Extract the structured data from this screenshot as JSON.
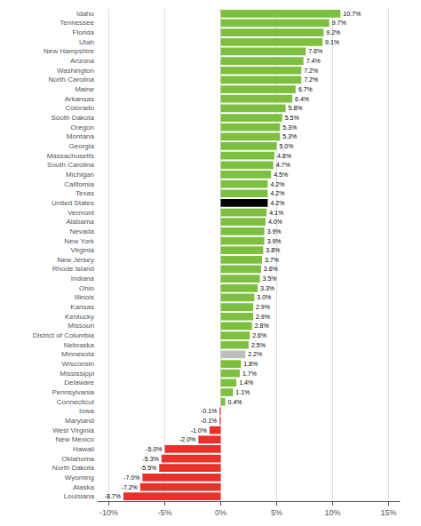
{
  "chart_data": {
    "type": "bar",
    "orientation": "horizontal",
    "categories": [
      "Idaho",
      "Tennessee",
      "Florida",
      "Utah",
      "New Hampshire",
      "Arizona",
      "Washington",
      "North Carolina",
      "Maine",
      "Arkansas",
      "Colorado",
      "South Dakota",
      "Oregon",
      "Montana",
      "Georgia",
      "Massachusetts",
      "South Carolina",
      "Michigan",
      "California",
      "Texas",
      "United States",
      "Vermont",
      "Alabama",
      "Nevada",
      "New York",
      "Virginia",
      "New Jersey",
      "Rhode Island",
      "Indiana",
      "Ohio",
      "Illinois",
      "Kansas",
      "Kentucky",
      "Missouri",
      "District of Columbia",
      "Nebraska",
      "Minnesota",
      "Wisconsin",
      "Mississippi",
      "Delaware",
      "Pennsylvania",
      "Connecticut",
      "Iowa",
      "Maryland",
      "West Virginia",
      "New Mexico",
      "Hawaii",
      "Oklahoma",
      "North Dakota",
      "Wyoming",
      "Alaska",
      "Louisiana"
    ],
    "values": [
      10.7,
      9.7,
      9.2,
      9.1,
      7.6,
      7.4,
      7.2,
      7.2,
      6.7,
      6.4,
      5.8,
      5.5,
      5.3,
      5.3,
      5.0,
      4.8,
      4.7,
      4.5,
      4.2,
      4.2,
      4.2,
      4.1,
      4.0,
      3.9,
      3.9,
      3.8,
      3.7,
      3.6,
      3.5,
      3.3,
      3.0,
      2.9,
      2.9,
      2.8,
      2.6,
      2.5,
      2.2,
      1.8,
      1.7,
      1.4,
      1.1,
      0.4,
      -0.1,
      -0.1,
      -1.0,
      -2.0,
      -5.0,
      -5.3,
      -5.5,
      -7.0,
      -7.2,
      -8.7
    ],
    "value_labels": [
      "10.7%",
      "9.7%",
      "9.2%",
      "9.1%",
      "7.6%",
      "7.4%",
      "7.2%",
      "7.2%",
      "6.7%",
      "6.4%",
      "5.8%",
      "5.5%",
      "5.3%",
      "5.3%",
      "5.0%",
      "4.8%",
      "4.7%",
      "4.5%",
      "4.2%",
      "4.2%",
      "4.2%",
      "4.1%",
      "4.0%",
      "3.9%",
      "3.9%",
      "3.8%",
      "3.7%",
      "3.6%",
      "3.5%",
      "3.3%",
      "3.0%",
      "2.9%",
      "2.9%",
      "2.8%",
      "2.6%",
      "2.5%",
      "2.2%",
      "1.8%",
      "1.7%",
      "1.4%",
      "1.1%",
      "0.4%",
      "-0.1%",
      "-0.1%",
      "-1.0%",
      "-2.0%",
      "-5.0%",
      "-5.3%",
      "-5.5%",
      "-7.0%",
      "-7.2%",
      "-8.7%"
    ],
    "colors": [
      "#7DC040",
      "#7DC040",
      "#7DC040",
      "#7DC040",
      "#7DC040",
      "#7DC040",
      "#7DC040",
      "#7DC040",
      "#7DC040",
      "#7DC040",
      "#7DC040",
      "#7DC040",
      "#7DC040",
      "#7DC040",
      "#7DC040",
      "#7DC040",
      "#7DC040",
      "#7DC040",
      "#7DC040",
      "#7DC040",
      "#000000",
      "#7DC040",
      "#7DC040",
      "#7DC040",
      "#7DC040",
      "#7DC040",
      "#7DC040",
      "#7DC040",
      "#7DC040",
      "#7DC040",
      "#7DC040",
      "#7DC040",
      "#7DC040",
      "#7DC040",
      "#7DC040",
      "#7DC040",
      "#BEBEBE",
      "#7DC040",
      "#7DC040",
      "#7DC040",
      "#7DC040",
      "#7DC040",
      "#E8312A",
      "#E8312A",
      "#E8312A",
      "#E8312A",
      "#E8312A",
      "#E8312A",
      "#E8312A",
      "#E8312A",
      "#E8312A",
      "#E8312A"
    ],
    "xlim": [
      -11,
      16
    ],
    "xticks": [
      {
        "value": -10,
        "label": "-10%"
      },
      {
        "value": -5,
        "label": "-5%"
      },
      {
        "value": 0,
        "label": "0%"
      },
      {
        "value": 5,
        "label": "5%"
      },
      {
        "value": 10,
        "label": "10%"
      },
      {
        "value": 15,
        "label": "15%"
      }
    ],
    "grid": true,
    "data_labels": true
  }
}
